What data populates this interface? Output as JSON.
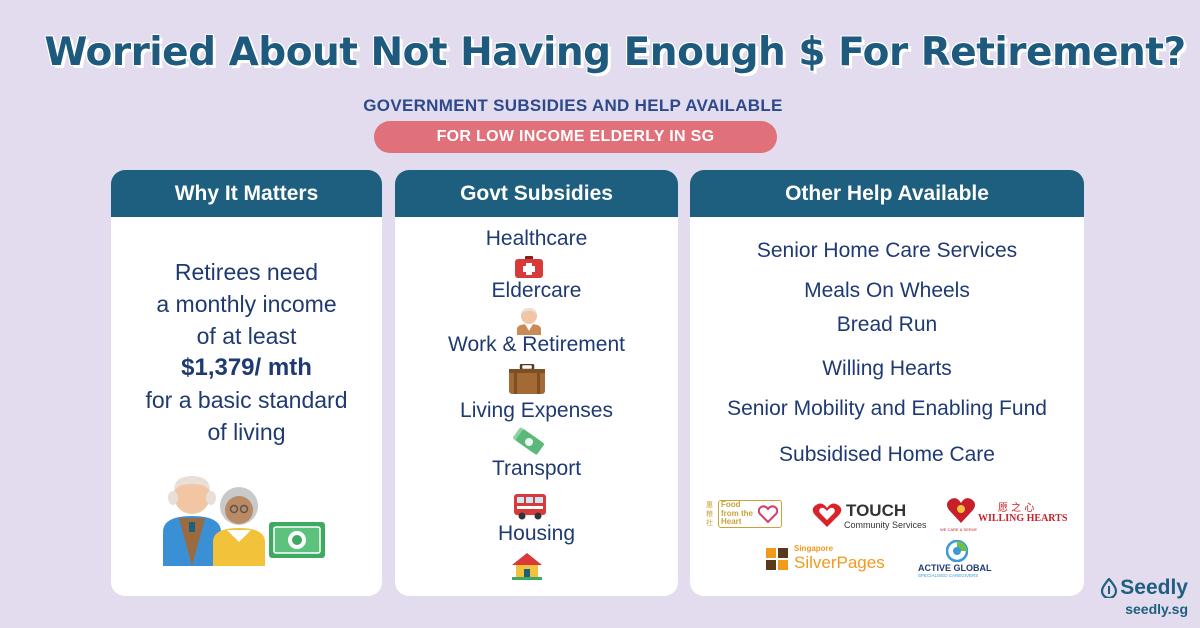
{
  "header": {
    "title": "Worried About Not Having Enough $ For Retirement?",
    "subtitle": "GOVERNMENT SUBSIDIES AND HELP AVAILABLE",
    "pill": "FOR LOW INCOME ELDERLY IN SG"
  },
  "why": {
    "heading": "Why It Matters",
    "line1": "Retirees need",
    "line2": "a monthly income",
    "line3": "of at least",
    "amount": "$1,379/ mth",
    "line4": "for a basic standard",
    "line5": "of living"
  },
  "subsidies": {
    "heading": "Govt Subsidies",
    "items": [
      {
        "label": "Healthcare",
        "icon": "first-aid-kit-icon"
      },
      {
        "label": "Eldercare",
        "icon": "elderly-person-icon"
      },
      {
        "label": "Work & Retirement",
        "icon": "briefcase-icon"
      },
      {
        "label": "Living Expenses",
        "icon": "money-icon"
      },
      {
        "label": "Transport",
        "icon": "bus-icon"
      },
      {
        "label": "Housing",
        "icon": "house-icon"
      }
    ]
  },
  "help": {
    "heading": "Other Help Available",
    "items": [
      "Senior Home Care Services",
      "Meals On Wheels",
      "Bread Run",
      "Willing Hearts",
      "Senior Mobility and Enabling Fund",
      "Subsidised Home Care"
    ]
  },
  "logos": {
    "food_heart": {
      "chinese": "惠粮社",
      "line1": "Food",
      "line2": "from the",
      "line3": "Heart"
    },
    "touch": {
      "name": "TOUCH",
      "sub": "Community Services"
    },
    "willing_hearts": {
      "name": "WILLING HEARTS",
      "chinese": "愿 之 心",
      "tag": "WE CARE & SERVE"
    },
    "silverpages": {
      "top": "Singapore",
      "name": "SilverPages"
    },
    "active_global": {
      "name": "ACTIVE GLOBAL",
      "sub": "SPECIALISED CAREGIVERS"
    }
  },
  "brand": {
    "name": "Seedly",
    "url": "seedly.sg"
  }
}
